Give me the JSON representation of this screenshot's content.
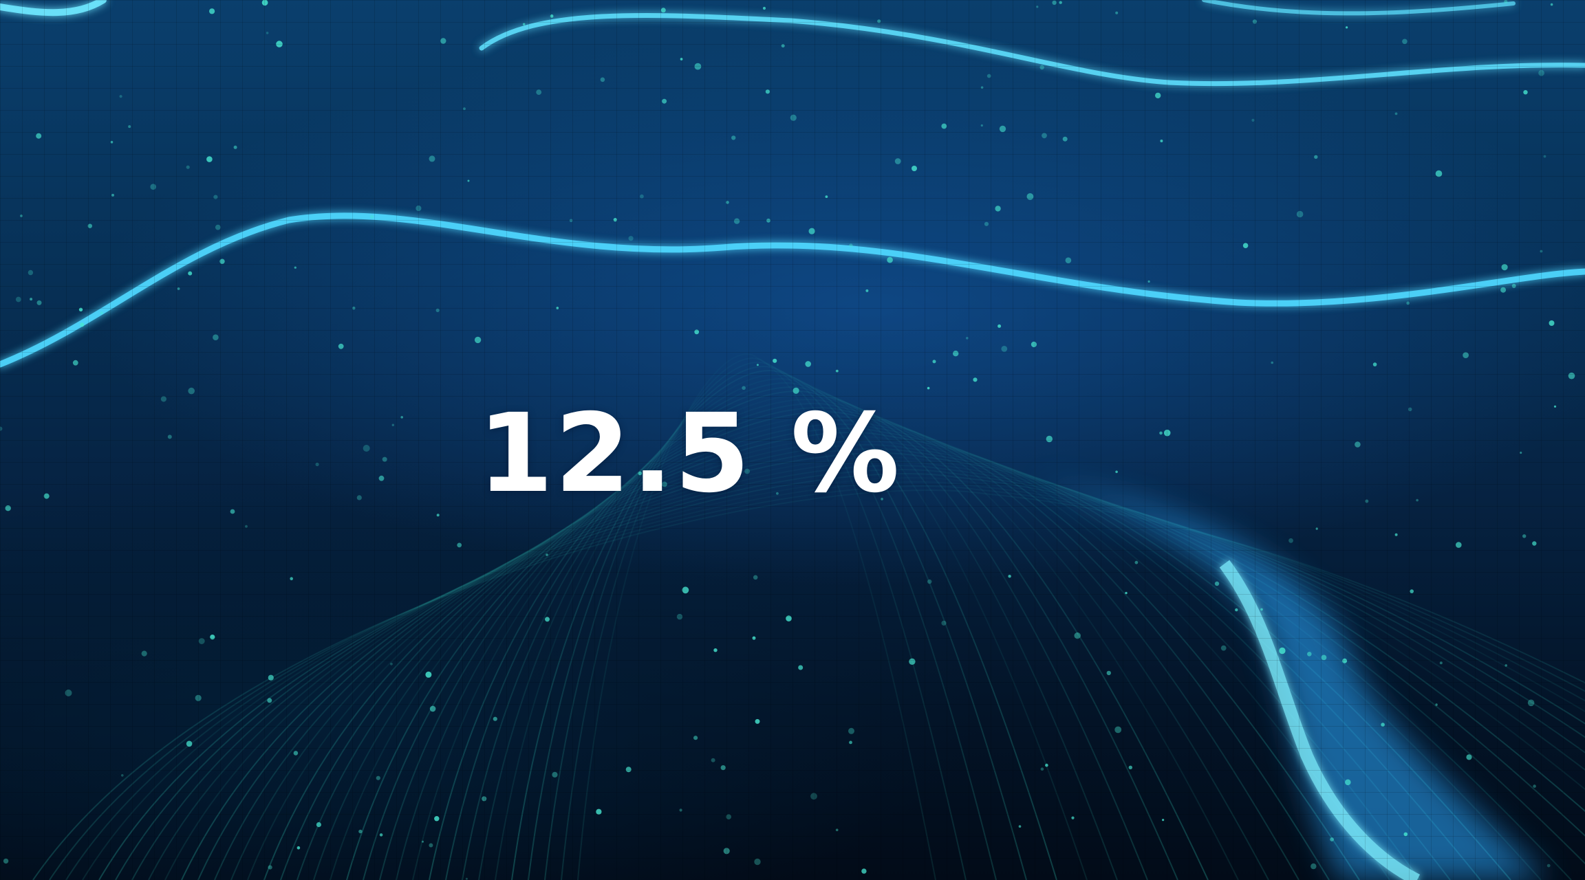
{
  "loader": {
    "progress_label": "12.5 %",
    "progress_percent": 12.5
  },
  "background": {
    "image": "digital-wave-particles-background",
    "colors": {
      "deep": "#041326",
      "mid": "#073157",
      "glow": "#38c8ff",
      "particles": "#3fe0c8"
    }
  }
}
